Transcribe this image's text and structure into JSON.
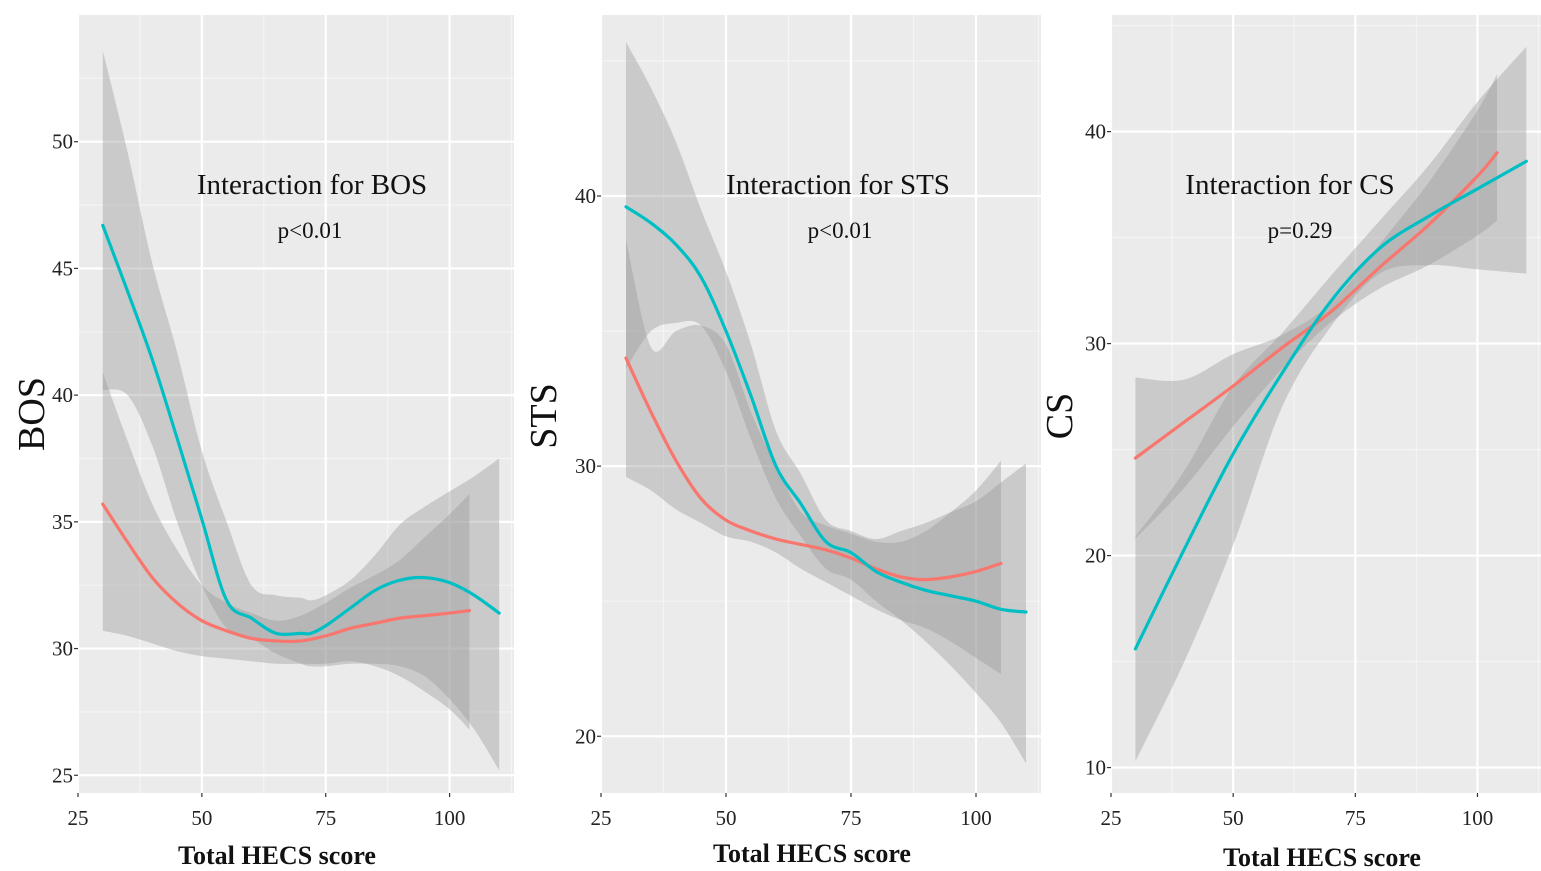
{
  "colors": {
    "panel": "#EBEBEB",
    "grid": "#FFFFFF",
    "band": "#999999",
    "series_red": "#F8766D",
    "series_teal": "#00BFC4"
  },
  "chart_data": [
    {
      "type": "line",
      "title": "Interaction for BOS",
      "subtitle": "p<0.01",
      "xlabel": "Total HECS score",
      "ylabel": "BOS",
      "xlim": [
        25,
        113
      ],
      "ylim": [
        24.3,
        55
      ],
      "xticks": [
        25,
        50,
        75,
        100
      ],
      "yticks": [
        25,
        30,
        35,
        40,
        45,
        50
      ],
      "grid": true,
      "legend": "none",
      "series": [
        {
          "color": "#F8766D",
          "x": [
            30,
            35,
            40,
            45,
            50,
            55,
            60,
            65,
            70,
            75,
            80,
            85,
            90,
            95,
            100,
            104
          ],
          "y": [
            35.7,
            34.2,
            32.8,
            31.8,
            31.1,
            30.7,
            30.4,
            30.3,
            30.3,
            30.5,
            30.8,
            31.0,
            31.2,
            31.3,
            31.4,
            31.5
          ],
          "lower": [
            30.7,
            30.5,
            30.2,
            29.9,
            29.7,
            29.6,
            29.5,
            29.4,
            29.4,
            29.4,
            29.5,
            29.3,
            28.9,
            28.3,
            27.6,
            26.8
          ],
          "upper": [
            40.9,
            38.2,
            35.7,
            33.9,
            32.5,
            31.8,
            31.4,
            31.1,
            31.3,
            31.8,
            32.4,
            32.9,
            33.5,
            34.4,
            35.3,
            36.1
          ]
        },
        {
          "color": "#00BFC4",
          "x": [
            30,
            35,
            40,
            45,
            50,
            55,
            60,
            65,
            70,
            72,
            75,
            80,
            85,
            90,
            95,
            100,
            105,
            110
          ],
          "y": [
            46.7,
            44.1,
            41.4,
            38.3,
            35.1,
            31.9,
            31.2,
            30.6,
            30.6,
            30.6,
            30.9,
            31.6,
            32.3,
            32.7,
            32.8,
            32.6,
            32.1,
            31.4
          ],
          "lower": [
            40.2,
            40.0,
            38.0,
            35.0,
            32.5,
            30.8,
            30.4,
            29.8,
            29.4,
            29.3,
            29.3,
            29.4,
            29.4,
            29.3,
            28.9,
            28.0,
            26.8,
            25.2
          ],
          "upper": [
            53.6,
            49.6,
            45.2,
            41.7,
            37.8,
            35.0,
            32.5,
            32.1,
            32.0,
            31.9,
            32.1,
            32.7,
            33.7,
            34.9,
            35.6,
            36.2,
            36.8,
            37.5
          ]
        }
      ]
    },
    {
      "type": "line",
      "title": "Interaction for STS",
      "subtitle": "p<0.01",
      "xlabel": "Total HECS score",
      "ylabel": "STS",
      "xlim": [
        25,
        113
      ],
      "ylim": [
        17.9,
        46.7
      ],
      "xticks": [
        25,
        50,
        75,
        100
      ],
      "yticks": [
        20,
        30,
        40
      ],
      "grid": true,
      "legend": "none",
      "series": [
        {
          "color": "#F8766D",
          "x": [
            30,
            35,
            40,
            45,
            50,
            55,
            60,
            65,
            70,
            75,
            80,
            85,
            90,
            95,
            100,
            105
          ],
          "y": [
            34.0,
            32.0,
            30.2,
            28.8,
            28.0,
            27.6,
            27.3,
            27.1,
            26.9,
            26.6,
            26.2,
            25.9,
            25.8,
            25.9,
            26.1,
            26.4
          ],
          "lower": [
            29.6,
            29.1,
            28.4,
            27.9,
            27.4,
            27.2,
            26.8,
            26.2,
            25.7,
            25.2,
            24.7,
            24.3,
            24.0,
            23.5,
            22.9,
            22.3
          ],
          "upper": [
            38.4,
            34.4,
            35.0,
            35.2,
            34.5,
            32.0,
            30.0,
            28.3,
            27.8,
            27.5,
            27.2,
            27.2,
            27.6,
            28.3,
            29.1,
            30.2
          ]
        },
        {
          "color": "#00BFC4",
          "x": [
            30,
            35,
            40,
            45,
            50,
            55,
            60,
            65,
            70,
            75,
            80,
            85,
            90,
            95,
            100,
            105,
            110
          ],
          "y": [
            39.6,
            39.0,
            38.2,
            37.0,
            35.0,
            32.6,
            30.0,
            28.6,
            27.2,
            26.8,
            26.1,
            25.7,
            25.4,
            25.2,
            25.0,
            24.7,
            24.6
          ],
          "lower": [
            33.6,
            35.0,
            35.3,
            35.2,
            33.5,
            31.0,
            28.8,
            27.4,
            26.2,
            25.8,
            25.0,
            24.3,
            23.5,
            22.6,
            21.6,
            20.5,
            19.0
          ],
          "upper": [
            45.7,
            44.0,
            42.0,
            39.5,
            37.2,
            34.5,
            31.3,
            29.7,
            28.0,
            27.6,
            27.3,
            27.6,
            27.9,
            28.3,
            28.7,
            29.4,
            30.1
          ]
        }
      ]
    },
    {
      "type": "line",
      "title": "Interaction for CS",
      "subtitle": "p=0.29",
      "xlabel": "Total HECS score",
      "ylabel": "CS",
      "xlim": [
        25,
        113
      ],
      "ylim": [
        8.8,
        45.5
      ],
      "xticks": [
        25,
        50,
        75,
        100
      ],
      "yticks": [
        10,
        20,
        30,
        40
      ],
      "grid": true,
      "legend": "none",
      "series": [
        {
          "color": "#F8766D",
          "x": [
            30,
            40,
            50,
            60,
            70,
            80,
            90,
            100,
            104
          ],
          "y": [
            24.6,
            26.3,
            28.0,
            29.8,
            31.5,
            33.6,
            35.6,
            37.9,
            39.0
          ],
          "lower": [
            20.8,
            23.2,
            26.1,
            28.8,
            31.0,
            32.6,
            33.7,
            35.1,
            35.8
          ],
          "upper": [
            28.4,
            28.3,
            29.5,
            30.4,
            31.9,
            34.7,
            37.6,
            41.0,
            42.7
          ]
        },
        {
          "color": "#00BFC4",
          "x": [
            30,
            40,
            50,
            60,
            70,
            80,
            90,
            100,
            110
          ],
          "y": [
            15.6,
            20.3,
            24.8,
            28.6,
            32.0,
            34.5,
            36.0,
            37.3,
            38.6
          ],
          "lower": [
            10.3,
            15.0,
            20.5,
            27.0,
            30.8,
            33.3,
            33.7,
            33.5,
            33.3
          ],
          "upper": [
            20.9,
            24.0,
            28.0,
            30.5,
            33.2,
            35.8,
            38.4,
            41.4,
            44.0
          ]
        }
      ]
    }
  ]
}
